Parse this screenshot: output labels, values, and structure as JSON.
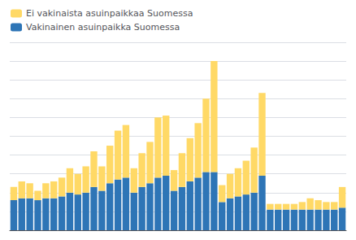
{
  "chart_data": {
    "type": "bar",
    "stacked": true,
    "categories": [
      null,
      null,
      null,
      null,
      null,
      null,
      null,
      null,
      null,
      null,
      null,
      null,
      null,
      null,
      null,
      null,
      null,
      null,
      null,
      null,
      null,
      null,
      null,
      null,
      null,
      null,
      null,
      null,
      null,
      null,
      null,
      null,
      null,
      null,
      null,
      null,
      null,
      null,
      null,
      null,
      null,
      null
    ],
    "series": [
      {
        "name": "Vakinainen asuinpaikka Suomessa",
        "color": "#2e75b6",
        "values": [
          8.0,
          8.5,
          8.5,
          8.0,
          8.5,
          8.5,
          9.0,
          10.0,
          9.5,
          10.0,
          11.5,
          10.5,
          12.5,
          13.5,
          14.0,
          10.0,
          11.5,
          12.5,
          14.0,
          14.5,
          10.5,
          11.5,
          13.0,
          14.0,
          15.5,
          15.5,
          7.5,
          8.5,
          9.0,
          9.5,
          10.0,
          14.5,
          5.5,
          5.5,
          5.5,
          5.5,
          5.5,
          5.5,
          5.5,
          5.5,
          5.5,
          6.0
        ]
      },
      {
        "name": "Ei vakinaista asuinpaikkaa Suomessa",
        "color": "#ffd966",
        "values": [
          3.5,
          4.5,
          4.0,
          2.5,
          4.0,
          4.5,
          5.0,
          6.5,
          5.5,
          7.0,
          9.5,
          6.5,
          10.0,
          13.0,
          14.0,
          6.5,
          9.0,
          11.0,
          16.0,
          16.0,
          5.5,
          9.0,
          11.5,
          14.5,
          19.5,
          29.5,
          4.5,
          6.5,
          7.5,
          9.0,
          12.0,
          22.0,
          1.5,
          1.5,
          1.5,
          1.5,
          2.0,
          3.0,
          2.5,
          2.0,
          2.0,
          5.5
        ]
      }
    ],
    "ylim": [
      0,
      50
    ],
    "yticks": [
      0,
      5,
      10,
      15,
      20,
      25,
      30,
      35,
      40,
      45,
      50
    ],
    "grid": true,
    "tick_labels": false,
    "legend": "upper left"
  }
}
